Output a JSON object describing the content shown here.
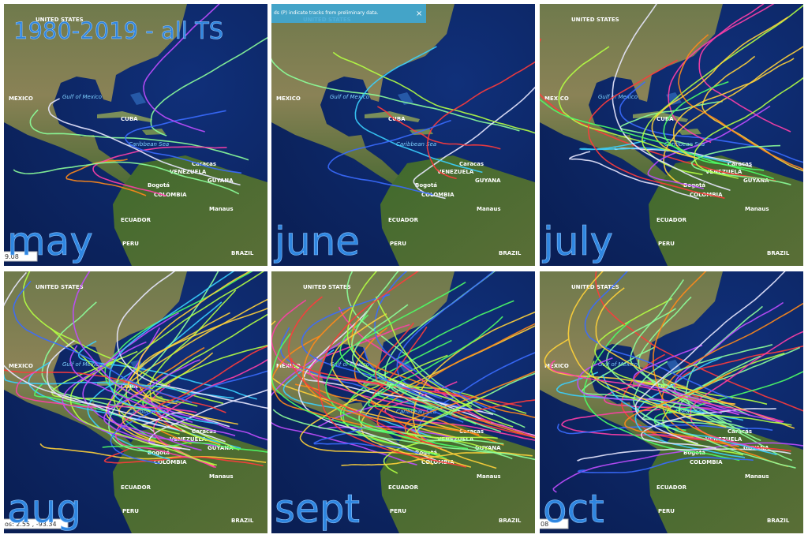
{
  "title": "1980-2019 - all TS",
  "panels": [
    {
      "label": "may",
      "status": "9.08"
    },
    {
      "label": "june",
      "banner": "ds (P) indicate tracks from preliminary data.",
      "close": "×"
    },
    {
      "label": "july"
    },
    {
      "label": "aug",
      "status": "os: 2.55 , -93.34"
    },
    {
      "label": "sept"
    },
    {
      "label": "oct",
      "status": "08"
    }
  ],
  "map_labels": [
    "UNITED STATES",
    "MEXICO",
    "CUBA",
    "Gulf of Mexico",
    "Caribbean Sea",
    "VENEZUELA",
    "COLOMBIA",
    "ECUADOR",
    "PERU",
    "BRAZIL",
    "GUYANA",
    "Caracas",
    "Bogotá",
    "Manaus"
  ]
}
